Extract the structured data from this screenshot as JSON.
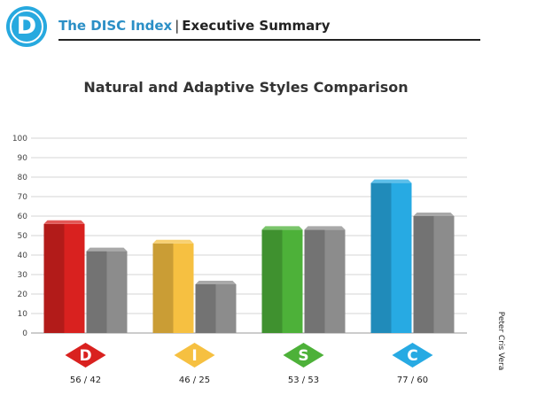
{
  "header": {
    "logo_letter": "D",
    "brand": "The DISC Index",
    "separator": "|",
    "section": "Executive Summary"
  },
  "side_credit": "Peter Cris Vera",
  "colors": {
    "brand": "#27a9df",
    "adaptive_gray": "#8c8c8c",
    "D": "#d9211f",
    "I": "#f6c041",
    "S": "#4db139",
    "C": "#27aae3"
  },
  "chart_data": {
    "type": "bar",
    "title": "Natural and Adaptive Styles Comparison",
    "ylim": [
      0,
      100
    ],
    "yticks": [
      0,
      10,
      20,
      30,
      40,
      50,
      60,
      70,
      80,
      90,
      100
    ],
    "grid": true,
    "categories": [
      "D",
      "I",
      "S",
      "C"
    ],
    "category_labels": [
      "56 / 42",
      "46 / 25",
      "53 / 53",
      "77 / 60"
    ],
    "series": [
      {
        "values": [
          56,
          46,
          53,
          77
        ]
      },
      {
        "values": [
          42,
          25,
          53,
          60
        ]
      }
    ]
  }
}
